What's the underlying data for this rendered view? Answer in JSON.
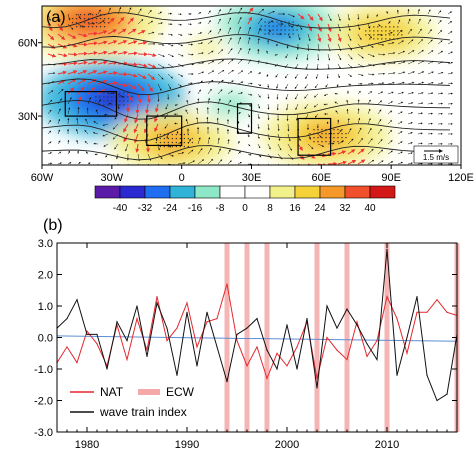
{
  "chart_data": [
    {
      "type": "heatmap",
      "panel_label": "(a)",
      "x_ticks": [
        "60W",
        "30W",
        "0",
        "30E",
        "60E",
        "90E",
        "120E"
      ],
      "x_range": [
        -60,
        120
      ],
      "y_ticks": [
        "60N",
        "30N"
      ],
      "y_range": [
        10,
        75
      ],
      "colorbar": {
        "labels": [
          "-40",
          "-32",
          "-24",
          "-16",
          "-8",
          "0",
          "8",
          "16",
          "24",
          "32",
          "40"
        ],
        "colors": [
          "#5b1aa8",
          "#2a2ad0",
          "#1f6ef0",
          "#2fb4d8",
          "#8ee8c8",
          "#ffffff",
          "#ffffff",
          "#f2f08a",
          "#f5d23a",
          "#f59a2a",
          "#f0502a",
          "#d41818"
        ]
      },
      "vector_reference": "1.5 m/s",
      "anomaly_centers": [
        {
          "lon": -30,
          "lat": 37,
          "value": -36
        },
        {
          "lon": -4,
          "lat": 20,
          "value": 26
        },
        {
          "lon": 21,
          "lat": 35,
          "value": -14
        },
        {
          "lon": 41,
          "lat": 66,
          "value": -26
        },
        {
          "lon": 62,
          "lat": 22,
          "value": 28
        },
        {
          "lon": -40,
          "lat": 69,
          "value": 34
        },
        {
          "lon": 86,
          "lat": 64,
          "value": 22
        },
        {
          "lon": 10,
          "lat": 58,
          "value": 10
        }
      ],
      "boxes": [
        {
          "lon": [
            -50,
            -28
          ],
          "lat": [
            30,
            40
          ]
        },
        {
          "lon": [
            -15,
            0
          ],
          "lat": [
            18,
            30
          ]
        },
        {
          "lon": [
            24,
            30
          ],
          "lat": [
            23,
            35
          ]
        },
        {
          "lon": [
            50,
            64
          ],
          "lat": [
            14,
            29
          ]
        }
      ]
    },
    {
      "type": "line",
      "panel_label": "(b)",
      "x": [
        1977,
        1978,
        1979,
        1980,
        1981,
        1982,
        1983,
        1984,
        1985,
        1986,
        1987,
        1988,
        1989,
        1990,
        1991,
        1992,
        1993,
        1994,
        1995,
        1996,
        1997,
        1998,
        1999,
        2000,
        2001,
        2002,
        2003,
        2004,
        2005,
        2006,
        2007,
        2008,
        2009,
        2010,
        2011,
        2012,
        2013,
        2014,
        2015,
        2016,
        2017
      ],
      "xlim": [
        1977,
        2017
      ],
      "x_ticks": [
        "1980",
        "1990",
        "2000",
        "2010"
      ],
      "ylim": [
        -3.0,
        3.0
      ],
      "y_ticks": [
        "3.0",
        "2.0",
        "1.0",
        "0.0",
        "-1.0",
        "-2.0",
        "-3.0"
      ],
      "series": [
        {
          "name": "NAT",
          "color": "#e3282e",
          "values": [
            -0.8,
            -0.3,
            -0.8,
            0.2,
            -0.2,
            -0.9,
            0.4,
            -0.7,
            0.6,
            -0.4,
            1.3,
            -0.1,
            0.3,
            1.1,
            -0.3,
            0.5,
            0.6,
            1.7,
            -0.1,
            -0.9,
            -0.3,
            -1.3,
            -0.5,
            -0.9,
            -0.3,
            0.5,
            -1.3,
            0.0,
            -0.4,
            -0.7,
            0.5,
            -0.6,
            -0.1,
            1.3,
            0.6,
            -0.5,
            0.8,
            0.8,
            1.2,
            0.8,
            0.7
          ]
        },
        {
          "name": "wave train index",
          "color": "#111111",
          "values": [
            0.3,
            0.6,
            1.2,
            0.1,
            0.1,
            -1.0,
            0.5,
            -0.1,
            1.0,
            -0.6,
            1.1,
            0.3,
            -1.2,
            0.8,
            -0.9,
            0.8,
            -0.3,
            -1.4,
            0.1,
            0.3,
            0.6,
            -0.4,
            -1.0,
            0.4,
            -1.0,
            0.6,
            -1.6,
            1.0,
            0.3,
            0.9,
            0.4,
            -0.2,
            -0.7,
            2.8,
            -1.2,
            0.0,
            1.3,
            -1.2,
            -2.0,
            -1.8,
            0.1
          ]
        }
      ],
      "legend_entries": [
        {
          "label": "NAT",
          "color": "#e3282e"
        },
        {
          "label": "ECW",
          "color": "#f5a8a8"
        },
        {
          "label": "wave train index",
          "color": "#111111"
        }
      ],
      "legend_position": "bottom-left",
      "ecw_years": [
        1994,
        1996,
        1998,
        2003,
        2006,
        2010,
        2017
      ],
      "ecw_color": "#f5a8a8",
      "trend": {
        "color": "#5b8ed6",
        "start": 0.05,
        "end": -0.12
      }
    }
  ]
}
